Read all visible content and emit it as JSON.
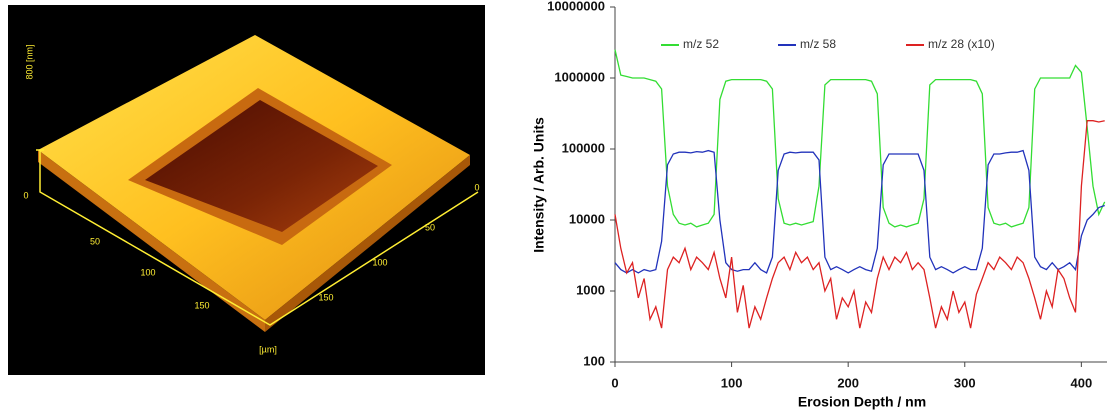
{
  "afm_image": {
    "z_label": "800 [nm]",
    "z_zero": "0",
    "x_ticks": [
      "50",
      "100",
      "150"
    ],
    "y_ticks": [
      "0",
      "50",
      "100",
      "150"
    ],
    "unit": "[µm]"
  },
  "chart_data": {
    "type": "line",
    "x_label": "Erosion Depth / nm",
    "y_label": "Intensity / Arb. Units",
    "log_y": true,
    "grid": false,
    "legend": "top",
    "xlim": [
      0,
      422
    ],
    "xticks": [
      0,
      100,
      200,
      300,
      400
    ],
    "ylim": [
      100,
      10000000
    ],
    "yticks": [
      100,
      1000,
      10000,
      100000,
      1000000,
      10000000
    ],
    "x": [
      0,
      5,
      10,
      15,
      20,
      25,
      30,
      35,
      40,
      45,
      50,
      55,
      60,
      65,
      70,
      75,
      80,
      85,
      90,
      95,
      100,
      105,
      110,
      115,
      120,
      125,
      130,
      135,
      140,
      145,
      150,
      155,
      160,
      165,
      170,
      175,
      180,
      185,
      190,
      195,
      200,
      205,
      210,
      215,
      220,
      225,
      230,
      235,
      240,
      245,
      250,
      255,
      260,
      265,
      270,
      275,
      280,
      285,
      290,
      295,
      300,
      305,
      310,
      315,
      320,
      325,
      330,
      335,
      340,
      345,
      350,
      355,
      360,
      365,
      370,
      375,
      380,
      385,
      390,
      395,
      400,
      405,
      410,
      415,
      420
    ],
    "series": [
      {
        "name": "m/z 52",
        "color": "#33dd33",
        "values": [
          2500000,
          1100000,
          1050000,
          1000000,
          1000000,
          1000000,
          950000,
          900000,
          700000,
          30000,
          12000,
          9000,
          8500,
          9000,
          8000,
          8500,
          9000,
          12000,
          500000,
          900000,
          950000,
          950000,
          950000,
          950000,
          950000,
          950000,
          900000,
          700000,
          20000,
          9000,
          8500,
          9000,
          8500,
          9000,
          9500,
          30000,
          800000,
          950000,
          950000,
          950000,
          950000,
          950000,
          950000,
          950000,
          900000,
          600000,
          15000,
          9000,
          8000,
          8500,
          8000,
          8500,
          9000,
          20000,
          800000,
          950000,
          950000,
          950000,
          950000,
          950000,
          950000,
          950000,
          900000,
          600000,
          15000,
          9000,
          8500,
          9000,
          8000,
          8500,
          9000,
          15000,
          700000,
          1000000,
          1000000,
          1000000,
          1000000,
          1000000,
          1000000,
          1500000,
          1200000,
          200000,
          30000,
          12000,
          18000
        ]
      },
      {
        "name": "m/z 58",
        "color": "#2233bb",
        "values": [
          2500,
          2000,
          1800,
          2000,
          1800,
          2000,
          1900,
          2000,
          5000,
          60000,
          85000,
          90000,
          90000,
          88000,
          92000,
          90000,
          95000,
          90000,
          10000,
          2500,
          2000,
          1900,
          2000,
          2000,
          2500,
          2000,
          1800,
          3000,
          50000,
          85000,
          90000,
          88000,
          90000,
          90000,
          90000,
          70000,
          3000,
          2000,
          2200,
          2000,
          1800,
          2000,
          2200,
          2000,
          1900,
          4000,
          60000,
          85000,
          85000,
          85000,
          85000,
          85000,
          85000,
          50000,
          3000,
          2000,
          2200,
          2000,
          1800,
          2000,
          2200,
          2000,
          2000,
          4000,
          60000,
          85000,
          85000,
          88000,
          90000,
          90000,
          95000,
          50000,
          3000,
          2200,
          2000,
          2500,
          2000,
          2200,
          2500,
          2000,
          6000,
          10000,
          12000,
          15000,
          16000
        ]
      },
      {
        "name": "m/z 28 (x10)",
        "color": "#dd2222",
        "values": [
          12000,
          4000,
          1800,
          2500,
          800,
          1500,
          400,
          600,
          300,
          2000,
          3000,
          2500,
          4000,
          2000,
          3000,
          2500,
          2000,
          3500,
          1500,
          800,
          3000,
          500,
          1200,
          300,
          600,
          400,
          800,
          1500,
          2500,
          3000,
          2000,
          3500,
          2500,
          3000,
          2000,
          2500,
          1000,
          1500,
          400,
          800,
          600,
          1000,
          300,
          700,
          500,
          1500,
          3000,
          2000,
          3000,
          2500,
          3500,
          2000,
          2500,
          2000,
          800,
          300,
          600,
          400,
          1000,
          500,
          700,
          300,
          900,
          1500,
          2500,
          2000,
          3000,
          2500,
          2000,
          3000,
          2500,
          1500,
          800,
          400,
          1000,
          600,
          2000,
          1500,
          800,
          500,
          30000,
          250000,
          250000,
          240000,
          250000
        ]
      }
    ]
  }
}
